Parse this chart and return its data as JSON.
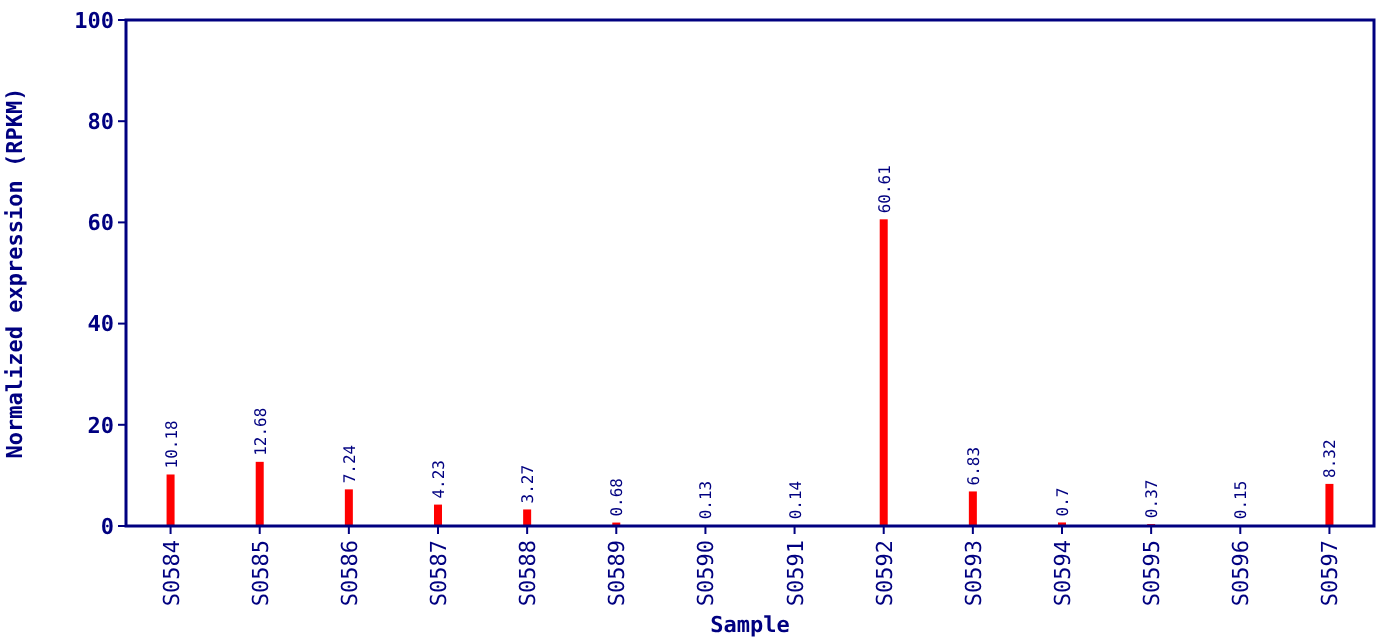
{
  "chart_data": {
    "type": "bar",
    "xlabel": "Sample",
    "ylabel": "Normalized expression (RPKM)",
    "categories": [
      "S0584",
      "S0585",
      "S0586",
      "S0587",
      "S0588",
      "S0589",
      "S0590",
      "S0591",
      "S0592",
      "S0593",
      "S0594",
      "S0595",
      "S0596",
      "S0597"
    ],
    "values": [
      10.18,
      12.68,
      7.24,
      4.23,
      3.27,
      0.68,
      0.13,
      0.14,
      60.61,
      6.83,
      0.7,
      0.37,
      0.15,
      8.32
    ],
    "color": "#ff0000",
    "ylim": [
      0,
      100
    ],
    "yticks": [
      0,
      20,
      40,
      60,
      80,
      100
    ],
    "data_labels": true
  }
}
